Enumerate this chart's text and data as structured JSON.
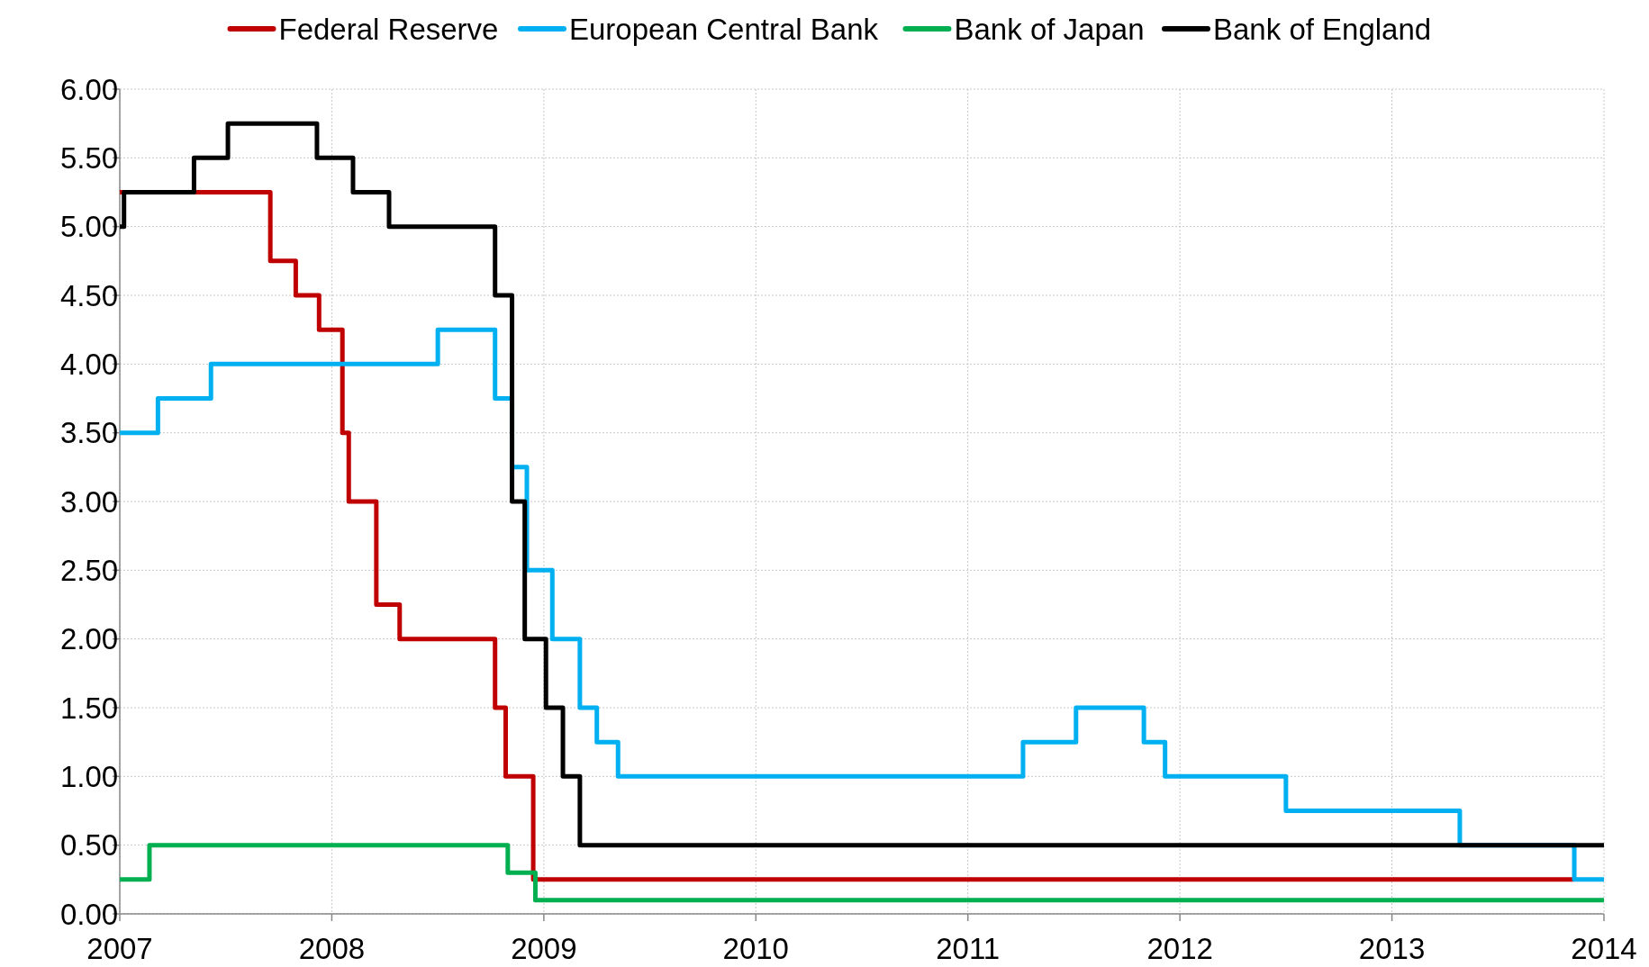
{
  "chart_data": {
    "type": "step",
    "xlim": [
      2007,
      2014
    ],
    "xticks": [
      2007,
      2008,
      2009,
      2010,
      2011,
      2012,
      2013,
      2014
    ],
    "ylim": [
      0,
      6
    ],
    "yticks": [
      {
        "value": 0,
        "label": "0.00"
      },
      {
        "value": 0.5,
        "label": "0.50"
      },
      {
        "value": 1,
        "label": "1.00"
      },
      {
        "value": 1.5,
        "label": "1.50"
      },
      {
        "value": 2,
        "label": "2.00"
      },
      {
        "value": 2.5,
        "label": "2.50"
      },
      {
        "value": 3,
        "label": "3.00"
      },
      {
        "value": 3.5,
        "label": "3.50"
      },
      {
        "value": 4,
        "label": "4.00"
      },
      {
        "value": 4.5,
        "label": "4.50"
      },
      {
        "value": 5,
        "label": "5.00"
      },
      {
        "value": 5.5,
        "label": "5.50"
      },
      {
        "value": 6,
        "label": "6.00"
      }
    ],
    "grid": true,
    "legend": "top",
    "marker": "none",
    "line_style": "solid",
    "series": [
      {
        "name": "Federal Reserve",
        "color": "#c00000",
        "x": [
          2007,
          2007.71,
          2007.83,
          2007.94,
          2008.05,
          2008.08,
          2008.21,
          2008.32,
          2008.77,
          2008.82,
          2008.95,
          2013.86
        ],
        "values": [
          5.25,
          4.75,
          4.5,
          4.25,
          3.5,
          3,
          2.25,
          2,
          1.5,
          1,
          0.25,
          0.25
        ]
      },
      {
        "name": "European Central Bank",
        "color": "#00b0f0",
        "x": [
          2007,
          2007.18,
          2007.43,
          2008.5,
          2008.77,
          2008.85,
          2008.92,
          2009.04,
          2009.17,
          2009.25,
          2009.35,
          2011.26,
          2011.51,
          2011.83,
          2011.93,
          2012.5,
          2013.32,
          2013.86,
          2014
        ],
        "values": [
          3.5,
          3.75,
          4,
          4.25,
          3.75,
          3.25,
          2.5,
          2,
          1.5,
          1.25,
          1,
          1.25,
          1.5,
          1.25,
          1,
          0.75,
          0.5,
          0.25,
          0.25
        ]
      },
      {
        "name": "Bank of Japan",
        "color": "#00b050",
        "x": [
          2007,
          2007.14,
          2008.83,
          2008.96,
          2014
        ],
        "values": [
          0.25,
          0.5,
          0.3,
          0.1,
          0.1
        ]
      },
      {
        "name": "Bank of England",
        "color": "#000000",
        "x": [
          2007,
          2007.02,
          2007.35,
          2007.51,
          2007.93,
          2008.1,
          2008.27,
          2008.77,
          2008.85,
          2008.91,
          2009.01,
          2009.09,
          2009.17,
          2014
        ],
        "values": [
          5,
          5.25,
          5.5,
          5.75,
          5.5,
          5.25,
          5,
          4.5,
          3,
          2,
          1.5,
          1,
          0.5,
          0.5
        ]
      }
    ]
  }
}
